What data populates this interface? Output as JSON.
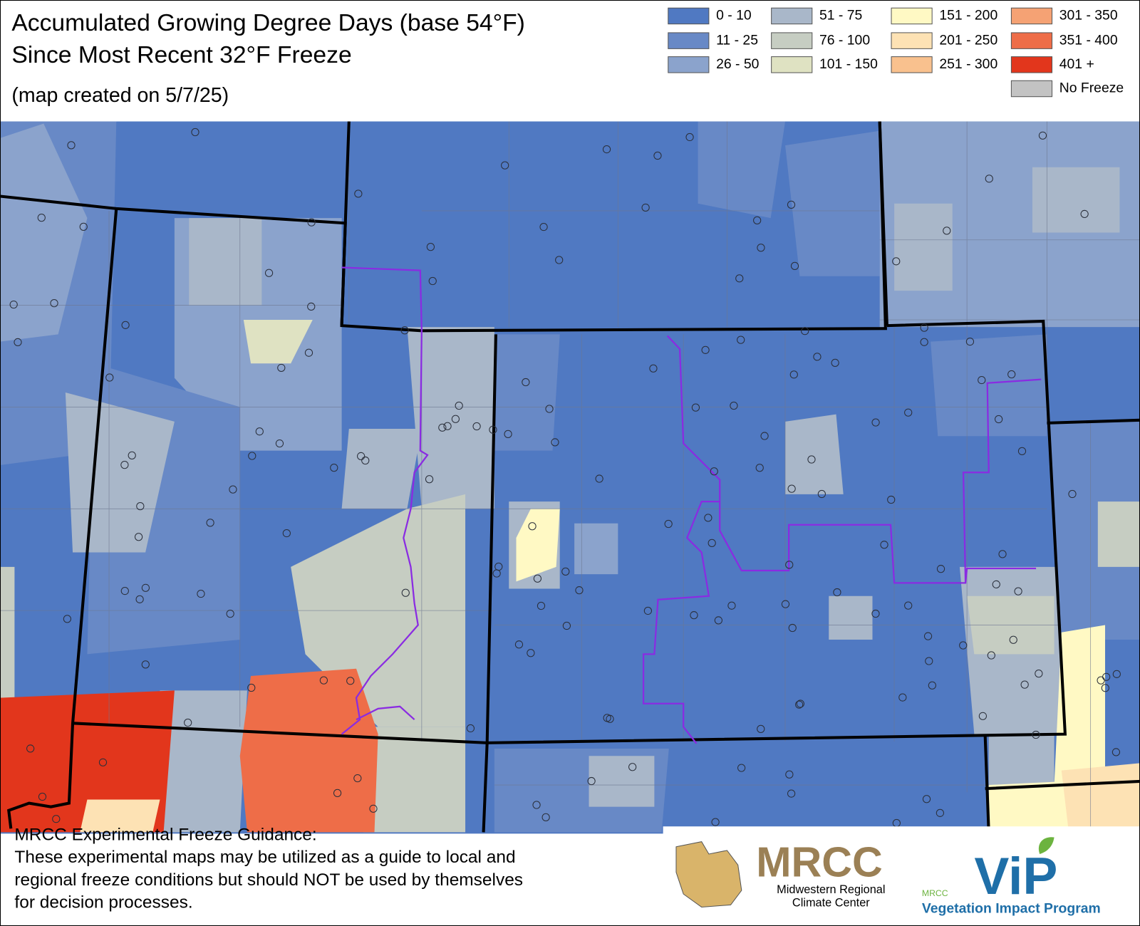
{
  "header": {
    "title_lines": [
      "Accumulated Growing Degree Days (base 54°F)",
      "Since Most Recent 32°F Freeze"
    ],
    "note": "(map created on 5/7/25)"
  },
  "legend": [
    {
      "label": "0 - 10",
      "color": "#5079c2"
    },
    {
      "label": "11 - 25",
      "color": "#6889c6"
    },
    {
      "label": "26 - 50",
      "color": "#8ba3cc"
    },
    {
      "label": "51 - 75",
      "color": "#a9b7c9"
    },
    {
      "label": "76 - 100",
      "color": "#c6cdc2"
    },
    {
      "label": "101 - 150",
      "color": "#dfe2c2"
    },
    {
      "label": "151 - 200",
      "color": "#fff9c4"
    },
    {
      "label": "201 - 250",
      "color": "#fde2b4"
    },
    {
      "label": "251 - 300",
      "color": "#f9c18e"
    },
    {
      "label": "301 - 350",
      "color": "#f5a274"
    },
    {
      "label": "351 - 400",
      "color": "#ee6d48"
    },
    {
      "label": "401 +",
      "color": "#e2361c"
    },
    {
      "label": "No Freeze",
      "color": "#c3c3c3"
    }
  ],
  "disclaimer": {
    "heading": "MRCC Experimental Freeze Guidance:",
    "lines": [
      "These experimental maps may be utilized as a guide to local and",
      "regional freeze conditions but should NOT be used by themselves",
      "for decision processes."
    ]
  },
  "logos": {
    "mrcc": {
      "name": "MRCC",
      "lines": [
        "Midwestern Regional",
        "Climate Center"
      ]
    },
    "vip": {
      "small": "MRCC",
      "name": "ViP",
      "full": "Vegetation Impact Program"
    }
  }
}
